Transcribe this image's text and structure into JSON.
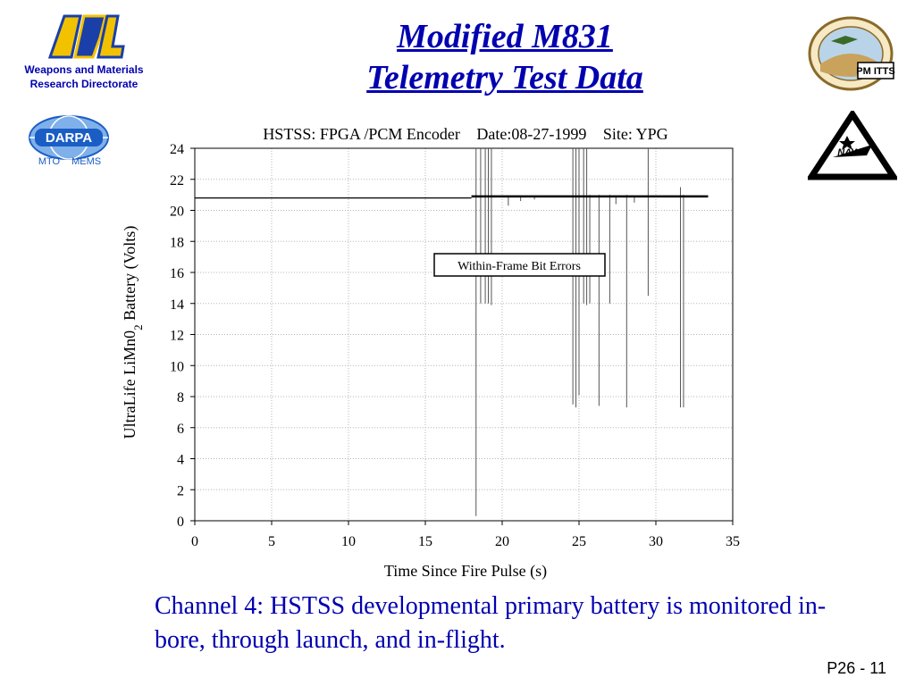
{
  "slide": {
    "title_line1": "Modified M831",
    "title_line2": "Telemetry Test Data",
    "arl_logo_text": "ARL",
    "arl_caption_line1": "Weapons and Materials",
    "arl_caption_line2": "Research Directorate",
    "darpa_logo_text": "DARPA",
    "darpa_sub": "MTO MEMS",
    "pm_seal_text": "PM ITTS",
    "nawc_text": "NAWC",
    "caption": "Channel 4: HSTSS developmental primary battery is monitored in-bore, through launch, and in-flight.",
    "page_number": "P26 - 11",
    "colors": {
      "title": "#0000b0",
      "caption": "#0000b0",
      "darpa": "#1a5dc4",
      "arl_gold": "#f2c200",
      "arl_blue": "#1a3fa8"
    }
  },
  "chart_data": {
    "type": "line",
    "header": {
      "part1": "HSTSS: FPGA /PCM Encoder",
      "part2": "Date:08-27-1999",
      "part3": "Site: YPG"
    },
    "xlabel": "Time Since Fire Pulse (s)",
    "ylabel_main": "UltraLife LiMn0",
    "ylabel_sub": "2",
    "ylabel_tail": " Battery (Volts)",
    "xlim": [
      0,
      35
    ],
    "ylim": [
      0,
      24
    ],
    "x_ticks": [
      0,
      5,
      10,
      15,
      20,
      25,
      30,
      35
    ],
    "y_ticks": [
      0,
      2,
      4,
      6,
      8,
      10,
      12,
      14,
      16,
      18,
      20,
      22,
      24
    ],
    "grid": true,
    "annotation": "Within-Frame Bit Errors",
    "baseline_segments": [
      {
        "x0": 0.0,
        "x1": 18.0,
        "y": 20.8
      },
      {
        "x0": 18.0,
        "x1": 33.4,
        "y": 20.9
      }
    ],
    "spikes": [
      {
        "x": 18.3,
        "ymin": 0.3,
        "ymax": 24
      },
      {
        "x": 18.6,
        "ymin": 14.0,
        "ymax": 24
      },
      {
        "x": 18.9,
        "ymin": 14.0,
        "ymax": 24
      },
      {
        "x": 19.1,
        "ymin": 14.0,
        "ymax": 24
      },
      {
        "x": 19.3,
        "ymin": 13.9,
        "ymax": 24
      },
      {
        "x": 24.6,
        "ymin": 7.5,
        "ymax": 24
      },
      {
        "x": 24.8,
        "ymin": 7.3,
        "ymax": 24
      },
      {
        "x": 25.0,
        "ymin": 8.1,
        "ymax": 24
      },
      {
        "x": 25.3,
        "ymin": 14.0,
        "ymax": 24
      },
      {
        "x": 25.5,
        "ymin": 13.9,
        "ymax": 24
      },
      {
        "x": 25.7,
        "ymin": 14.0,
        "ymax": 21
      },
      {
        "x": 26.3,
        "ymin": 7.4,
        "ymax": 21
      },
      {
        "x": 27.0,
        "ymin": 14.0,
        "ymax": 21
      },
      {
        "x": 28.1,
        "ymin": 7.3,
        "ymax": 21
      },
      {
        "x": 29.5,
        "ymin": 14.5,
        "ymax": 24
      },
      {
        "x": 31.6,
        "ymin": 7.3,
        "ymax": 21.5
      },
      {
        "x": 31.8,
        "ymin": 7.3,
        "ymax": 21
      }
    ],
    "small_dips": [
      {
        "x": 20.4,
        "ymin": 20.3
      },
      {
        "x": 21.2,
        "ymin": 20.6
      },
      {
        "x": 22.1,
        "ymin": 20.7
      },
      {
        "x": 27.4,
        "ymin": 20.4
      },
      {
        "x": 28.6,
        "ymin": 20.5
      }
    ]
  }
}
